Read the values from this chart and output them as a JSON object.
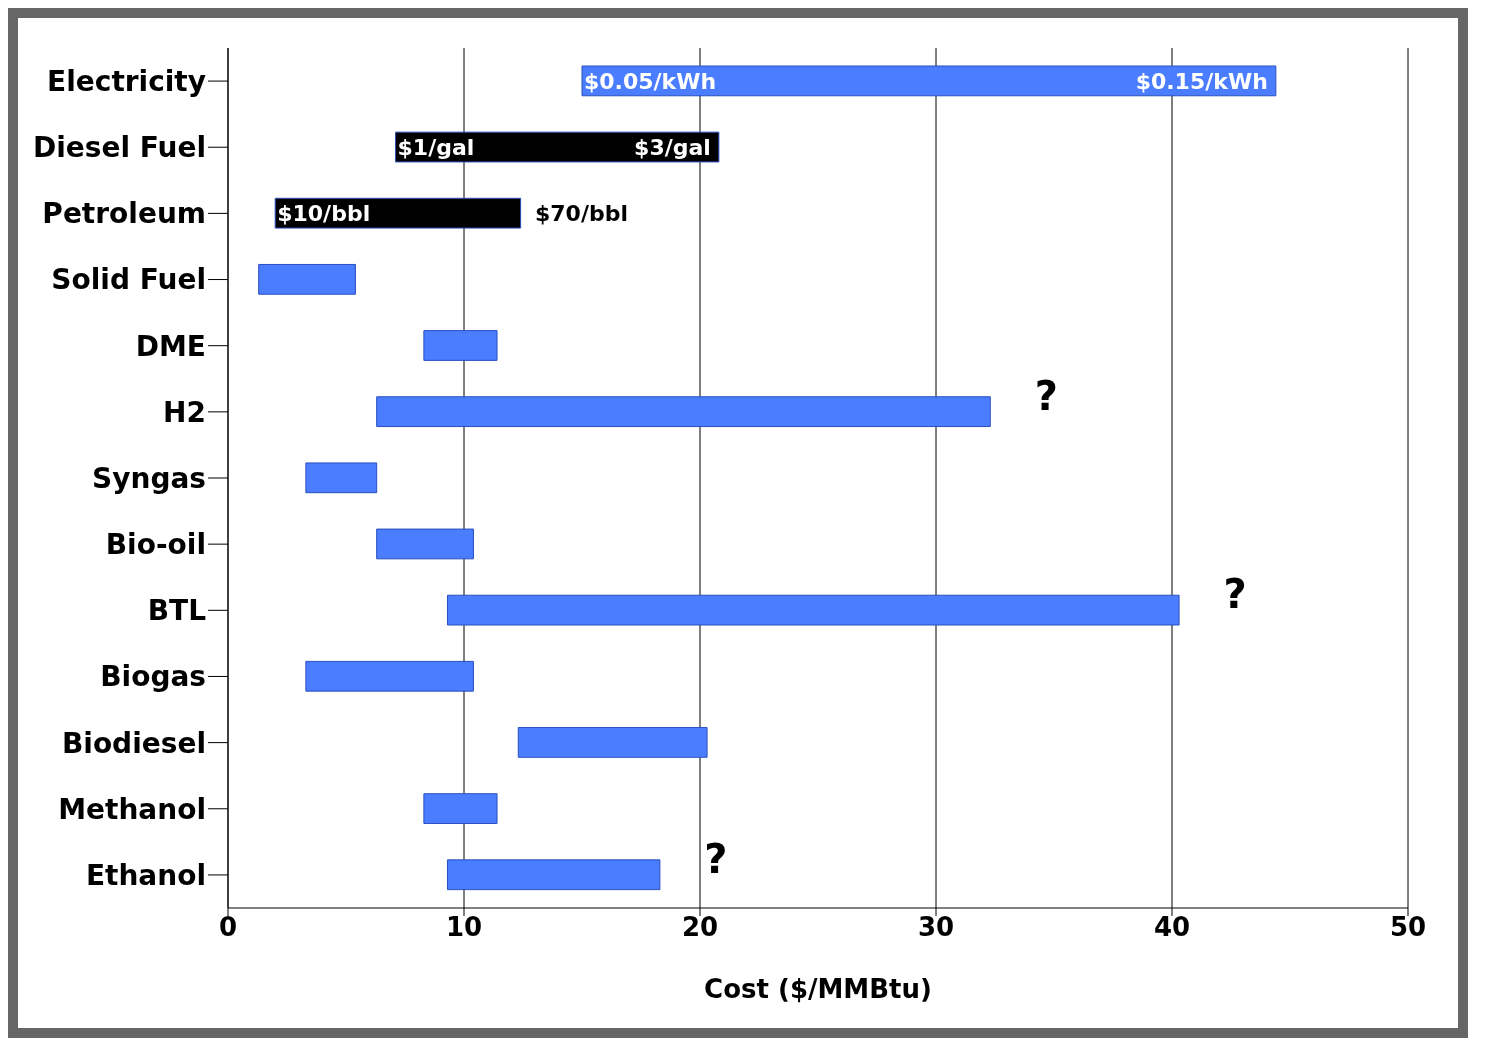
{
  "chart_data": {
    "type": "bar",
    "orientation": "horizontal",
    "xlabel": "Cost ($/MMBtu)",
    "categories": [
      "Electricity",
      "Diesel Fuel",
      "Petroleum",
      "Solid Fuel",
      "DME",
      "H2",
      "Syngas",
      "Bio-oil",
      "BTL",
      "Biogas",
      "Biodiesel",
      "Methanol",
      "Ethanol"
    ],
    "base": [
      15,
      7.1,
      2.0,
      1.3,
      8.3,
      6.3,
      3.3,
      6.3,
      9.3,
      3.3,
      12.3,
      8.3,
      9.3
    ],
    "values": [
      29.4,
      13.7,
      10.4,
      4.1,
      3.1,
      26.0,
      3.0,
      4.1,
      31.0,
      7.1,
      8.0,
      3.1,
      9.0
    ],
    "colors": [
      "#4a7dff",
      "#000000",
      "#000000",
      "#4a7dff",
      "#4a7dff",
      "#4a7dff",
      "#4a7dff",
      "#4a7dff",
      "#4a7dff",
      "#4a7dff",
      "#4a7dff",
      "#4a7dff",
      "#4a7dff"
    ],
    "xlim": [
      0,
      50
    ],
    "xticks": [
      0,
      10,
      20,
      30,
      40,
      50
    ],
    "grid": "x",
    "annotations": [
      {
        "text": "$0.05/kWh",
        "x": 15,
        "y": "Electricity"
      },
      {
        "text": "$0.15/kWh",
        "x": 44.4,
        "y": "Electricity"
      },
      {
        "text": "$1/gal",
        "x": 7.1,
        "y": "Diesel Fuel"
      },
      {
        "text": "$3/gal",
        "x": 20.8,
        "y": "Diesel Fuel"
      },
      {
        "text": "$10/bbl",
        "x": 2.0,
        "y": "Petroleum"
      },
      {
        "text": "$70/bbl",
        "x": 12.5,
        "y": "Petroleum"
      },
      {
        "text": "?",
        "x": 32.4,
        "y": "H2"
      },
      {
        "text": "?",
        "x": 40.4,
        "y": "BTL"
      },
      {
        "text": "?",
        "x": 18.4,
        "y": "Ethanol"
      }
    ]
  }
}
